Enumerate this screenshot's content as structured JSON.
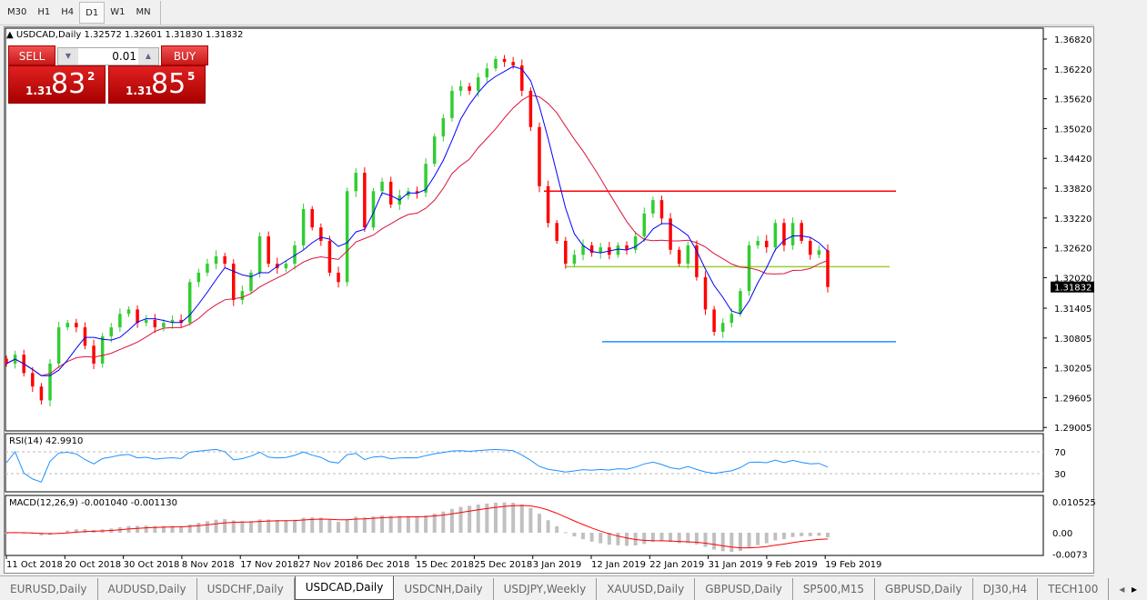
{
  "timeframes": [
    {
      "label": "M30"
    },
    {
      "label": "H1"
    },
    {
      "label": "H4"
    },
    {
      "label": "D1",
      "active": true
    },
    {
      "label": "W1"
    },
    {
      "label": "MN"
    }
  ],
  "chart": {
    "title": "USDCAD,Daily",
    "ohlc": "1.32572 1.32601 1.31830 1.31832",
    "current_price": "1.31832"
  },
  "trade": {
    "sell_label": "SELL",
    "buy_label": "BUY",
    "lot": "0.01",
    "sell_prefix": "1.31",
    "sell_big": "83",
    "sell_sup": "2",
    "buy_prefix": "1.31",
    "buy_big": "85",
    "buy_sup": "5"
  },
  "price_axis": [
    "1.36820",
    "1.36220",
    "1.35620",
    "1.35020",
    "1.34420",
    "1.33820",
    "1.33220",
    "1.32620",
    "1.32020",
    "1.31405",
    "1.30805",
    "1.30205",
    "1.29605",
    "1.29005"
  ],
  "date_axis": [
    "11 Oct 2018",
    "20 Oct 2018",
    "30 Oct 2018",
    "8 Nov 2018",
    "17 Nov 2018",
    "27 Nov 2018",
    "6 Dec 2018",
    "15 Dec 2018",
    "25 Dec 2018",
    "3 Jan 2019",
    "12 Jan 2019",
    "22 Jan 2019",
    "31 Jan 2019",
    "9 Feb 2019",
    "19 Feb 2019"
  ],
  "rsi": {
    "label": "RSI(14) 42.9910",
    "levels": [
      "70",
      "30"
    ]
  },
  "macd": {
    "label": "MACD(12,26,9) -0.001040 -0.001130",
    "axis": [
      "0.010525",
      "0.00",
      "-0.0073"
    ]
  },
  "colors": {
    "up": "#32cd32",
    "down": "#ff0000",
    "ma_fast": "#0000ff",
    "ma_slow": "#dc143c",
    "resistance": "#ff0000",
    "pivot": "#9acd32",
    "support": "#1e90ff",
    "rsi": "#1e90ff",
    "macd_hist": "#c0c0c0",
    "macd_signal": "#ff0000"
  },
  "levels": {
    "resistance": 1.3376,
    "pivot": 1.3224,
    "support": 1.3073
  },
  "chart_data": {
    "type": "candlestick",
    "closes": [
      1.3029,
      1.3047,
      1.301,
      1.2983,
      1.2955,
      1.3029,
      1.3102,
      1.3111,
      1.3102,
      1.3065,
      1.3029,
      1.3084,
      1.3102,
      1.3129,
      1.3138,
      1.3111,
      1.3117,
      1.3102,
      1.3111,
      1.3117,
      1.3111,
      1.3193,
      1.3212,
      1.323,
      1.3245,
      1.323,
      1.3157,
      1.3175,
      1.3212,
      1.3285,
      1.323,
      1.3221,
      1.323,
      1.3267,
      1.334,
      1.3303,
      1.3276,
      1.3212,
      1.3193,
      1.3376,
      1.3413,
      1.3303,
      1.3376,
      1.3395,
      1.3349,
      1.3367,
      1.3376,
      1.3373,
      1.3431,
      1.3486,
      1.3523,
      1.3578,
      1.3587,
      1.3578,
      1.3605,
      1.3623,
      1.3642,
      1.3636,
      1.3629,
      1.3578,
      1.3505,
      1.3386,
      1.3312,
      1.3276,
      1.323,
      1.3248,
      1.3267,
      1.3252,
      1.3263,
      1.3248,
      1.3267,
      1.3258,
      1.3285,
      1.3331,
      1.3358,
      1.3321,
      1.3258,
      1.323,
      1.3267,
      1.3203,
      1.3138,
      1.3093,
      1.3111,
      1.3129,
      1.3175,
      1.3267,
      1.3276,
      1.3263,
      1.3312,
      1.3267,
      1.3312,
      1.3276,
      1.3248,
      1.3257,
      1.31832
    ],
    "ylim": [
      1.289,
      1.37
    ]
  },
  "tabs": [
    {
      "label": "EURUSD,Daily"
    },
    {
      "label": "AUDUSD,Daily"
    },
    {
      "label": "USDCHF,Daily"
    },
    {
      "label": "USDCAD,Daily",
      "active": true
    },
    {
      "label": "USDCNH,Daily"
    },
    {
      "label": "USDJPY,Weekly"
    },
    {
      "label": "XAUUSD,Daily"
    },
    {
      "label": "GBPUSD,Daily"
    },
    {
      "label": "SP500,M15"
    },
    {
      "label": "GBPUSD,Daily"
    },
    {
      "label": "DJ30,H4"
    },
    {
      "label": "TECH100"
    }
  ]
}
